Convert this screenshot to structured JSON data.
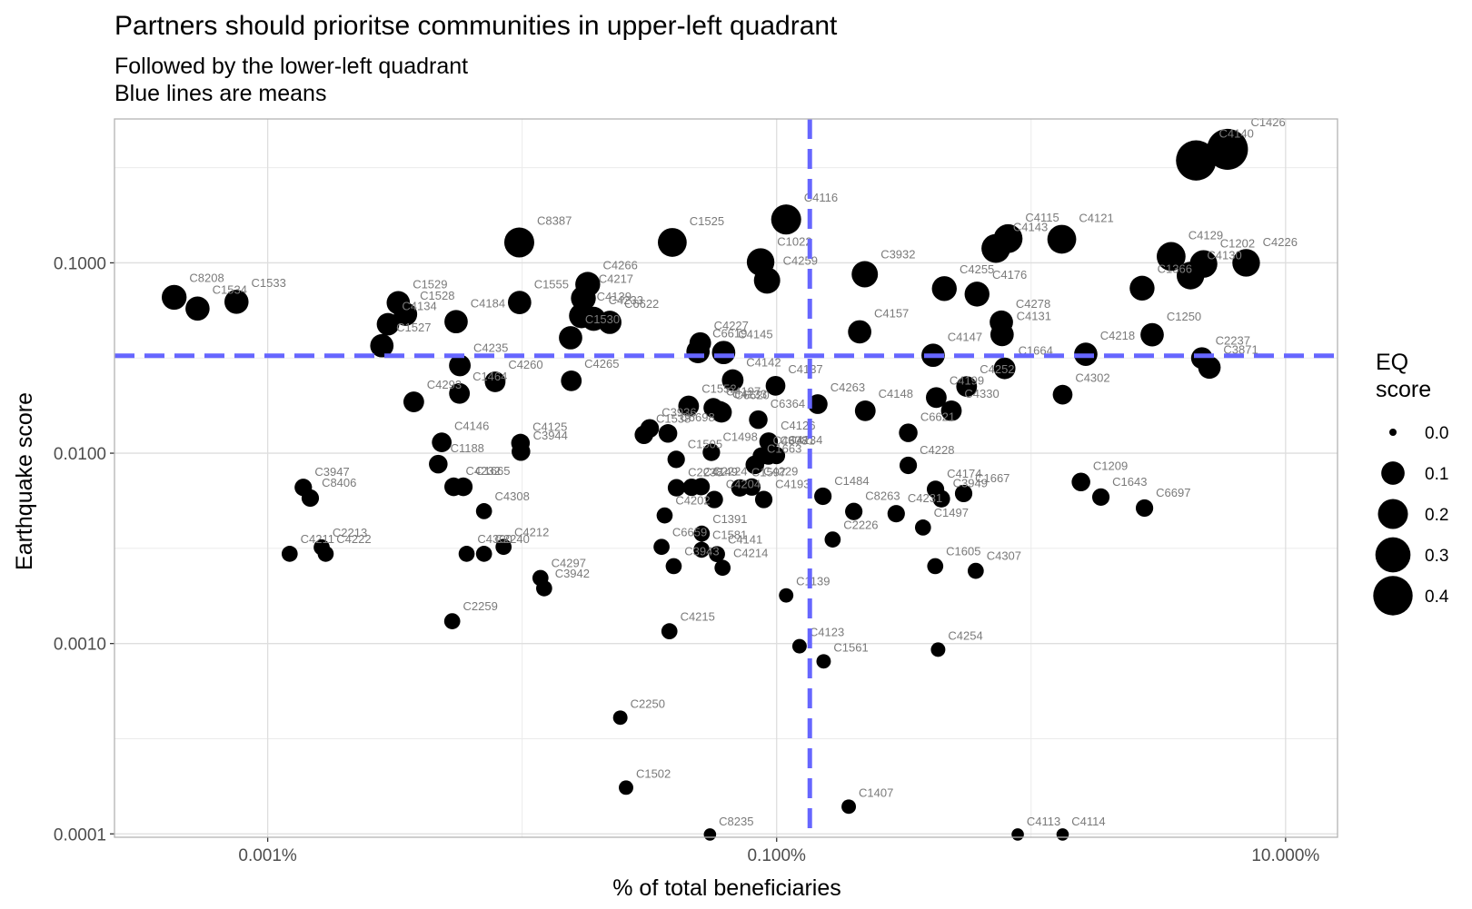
{
  "chart_data": {
    "type": "scatter",
    "title": "Partners should prioritse communities in upper-left quadrant",
    "subtitle_lines": [
      "Followed by the lower-left quadrant",
      "Blue lines are means"
    ],
    "xlabel": "% of total beneficiaries",
    "ylabel": "Earthquake score",
    "x_scale": "log10",
    "y_scale": "log10",
    "xlim": [
      2.5e-06,
      0.16
    ],
    "ylim": [
      9.6e-05,
      0.57
    ],
    "x_ticks": [
      {
        "value": 1e-05,
        "label": "0.001%"
      },
      {
        "value": 0.001,
        "label": "0.100%"
      },
      {
        "value": 0.1,
        "label": "10.000%"
      }
    ],
    "y_ticks": [
      {
        "value": 0.0001,
        "label": "0.0001"
      },
      {
        "value": 0.001,
        "label": "0.0010"
      },
      {
        "value": 0.01,
        "label": "0.0100"
      },
      {
        "value": 0.1,
        "label": "0.1000"
      }
    ],
    "grid": true,
    "mean_lines": {
      "x": 0.00135,
      "y": 0.0325,
      "color": "#6666ff"
    },
    "legend": {
      "title_lines": [
        "EQ",
        "score"
      ],
      "position": "right",
      "values": [
        0.0,
        0.1,
        0.2,
        0.3,
        0.4
      ],
      "labels": [
        "0.0",
        "0.1",
        "0.2",
        "0.3",
        "0.4"
      ]
    },
    "points": [
      {
        "label": "C1426",
        "x": 0.0591,
        "y": 0.395,
        "size": 0.44
      },
      {
        "label": "C4140",
        "x": 0.0445,
        "y": 0.345,
        "size": 0.42
      },
      {
        "label": "C4116",
        "x": 0.00109,
        "y": 0.169,
        "size": 0.2
      },
      {
        "label": "C8387",
        "x": 9.74e-05,
        "y": 0.128,
        "size": 0.2
      },
      {
        "label": "C1525",
        "x": 0.000389,
        "y": 0.128,
        "size": 0.18
      },
      {
        "label": "C4121",
        "x": 0.0132,
        "y": 0.133,
        "size": 0.18
      },
      {
        "label": "C4115",
        "x": 0.00812,
        "y": 0.134,
        "size": 0.18
      },
      {
        "label": "C4143",
        "x": 0.00727,
        "y": 0.119,
        "size": 0.18
      },
      {
        "label": "C4129",
        "x": 0.0355,
        "y": 0.108,
        "size": 0.18
      },
      {
        "label": "C1202",
        "x": 0.0476,
        "y": 0.0986,
        "size": 0.16
      },
      {
        "label": "C4226",
        "x": 0.07,
        "y": 0.1,
        "size": 0.16
      },
      {
        "label": "C4130",
        "x": 0.0423,
        "y": 0.0857,
        "size": 0.16
      },
      {
        "label": "C1022",
        "x": 0.000865,
        "y": 0.101,
        "size": 0.16
      },
      {
        "label": "C4259",
        "x": 0.000917,
        "y": 0.0808,
        "size": 0.14
      },
      {
        "label": "C3932",
        "x": 0.00222,
        "y": 0.0871,
        "size": 0.14
      },
      {
        "label": "C1366",
        "x": 0.0273,
        "y": 0.0736,
        "size": 0.12
      },
      {
        "label": "C4255",
        "x": 0.00456,
        "y": 0.0732,
        "size": 0.12
      },
      {
        "label": "C4176",
        "x": 0.00613,
        "y": 0.0685,
        "size": 0.12
      },
      {
        "label": "C8208",
        "x": 4.29e-06,
        "y": 0.0659,
        "size": 0.12
      },
      {
        "label": "C1534",
        "x": 5.3e-06,
        "y": 0.0575,
        "size": 0.11
      },
      {
        "label": "C1533",
        "x": 7.54e-06,
        "y": 0.0624,
        "size": 0.11
      },
      {
        "label": "C1529",
        "x": 3.26e-05,
        "y": 0.0617,
        "size": 0.1
      },
      {
        "label": "C1528",
        "x": 3.48e-05,
        "y": 0.0537,
        "size": 0.1
      },
      {
        "label": "C1555",
        "x": 9.77e-05,
        "y": 0.0619,
        "size": 0.1
      },
      {
        "label": "C4266",
        "x": 0.000181,
        "y": 0.0771,
        "size": 0.12
      },
      {
        "label": "C4217",
        "x": 0.000174,
        "y": 0.0652,
        "size": 0.12
      },
      {
        "label": "C4139",
        "x": 0.000171,
        "y": 0.0527,
        "size": 0.12
      },
      {
        "label": "C4233",
        "x": 0.000191,
        "y": 0.0508,
        "size": 0.11
      },
      {
        "label": "C6622",
        "x": 0.000221,
        "y": 0.0487,
        "size": 0.1
      },
      {
        "label": "C4184",
        "x": 5.5e-05,
        "y": 0.0491,
        "size": 0.1
      },
      {
        "label": "C4157",
        "x": 0.00212,
        "y": 0.0434,
        "size": 0.1
      },
      {
        "label": "C4278",
        "x": 0.00764,
        "y": 0.0488,
        "size": 0.1
      },
      {
        "label": "C4131",
        "x": 0.00769,
        "y": 0.042,
        "size": 0.1
      },
      {
        "label": "C1250",
        "x": 0.0299,
        "y": 0.0419,
        "size": 0.1
      },
      {
        "label": "C1530",
        "x": 0.000155,
        "y": 0.0404,
        "size": 0.1
      },
      {
        "label": "C4134",
        "x": 2.97e-05,
        "y": 0.0476,
        "size": 0.09
      },
      {
        "label": "C4227",
        "x": 0.000501,
        "y": 0.0379,
        "size": 0.08
      },
      {
        "label": "C6619",
        "x": 0.000491,
        "y": 0.0342,
        "size": 0.1
      },
      {
        "label": "C4145",
        "x": 0.000619,
        "y": 0.0338,
        "size": 0.1
      },
      {
        "label": "C1527",
        "x": 2.81e-05,
        "y": 0.0367,
        "size": 0.1
      },
      {
        "label": "C4218",
        "x": 0.0164,
        "y": 0.0331,
        "size": 0.1
      },
      {
        "label": "C4147",
        "x": 0.00412,
        "y": 0.0327,
        "size": 0.1
      },
      {
        "label": "C2237",
        "x": 0.0469,
        "y": 0.0316,
        "size": 0.08
      },
      {
        "label": "C3871",
        "x": 0.0502,
        "y": 0.0282,
        "size": 0.09
      },
      {
        "label": "C1664",
        "x": 0.00787,
        "y": 0.0279,
        "size": 0.08
      },
      {
        "label": "C4235",
        "x": 5.69e-05,
        "y": 0.0289,
        "size": 0.08
      },
      {
        "label": "C4260",
        "x": 7.83e-05,
        "y": 0.0237,
        "size": 0.07
      },
      {
        "label": "C4265",
        "x": 0.000156,
        "y": 0.024,
        "size": 0.07
      },
      {
        "label": "C4142",
        "x": 0.000672,
        "y": 0.0242,
        "size": 0.08
      },
      {
        "label": "C4137",
        "x": 0.00099,
        "y": 0.0226,
        "size": 0.06
      },
      {
        "label": "C4199",
        "x": 0.00424,
        "y": 0.0196,
        "size": 0.07
      },
      {
        "label": "C4252",
        "x": 0.00558,
        "y": 0.0224,
        "size": 0.07
      },
      {
        "label": "C1464",
        "x": 5.67e-05,
        "y": 0.0206,
        "size": 0.07
      },
      {
        "label": "C4293",
        "x": 3.75e-05,
        "y": 0.0186,
        "size": 0.07
      },
      {
        "label": "C6620",
        "x": 0.000607,
        "y": 0.0164,
        "size": 0.07
      },
      {
        "label": "C4197",
        "x": 0.000564,
        "y": 0.0173,
        "size": 0.06
      },
      {
        "label": "C1552",
        "x": 0.000451,
        "y": 0.0177,
        "size": 0.07
      },
      {
        "label": "C4133",
        "x": 0.000597,
        "y": 0.0167,
        "size": 0.06
      },
      {
        "label": "C4148",
        "x": 0.00223,
        "y": 0.0167,
        "size": 0.07
      },
      {
        "label": "C4263",
        "x": 0.00145,
        "y": 0.0181,
        "size": 0.06
      },
      {
        "label": "C4330",
        "x": 0.00486,
        "y": 0.0167,
        "size": 0.07
      },
      {
        "label": "C6364",
        "x": 0.000847,
        "y": 0.015,
        "size": 0.05
      },
      {
        "label": "C4302",
        "x": 0.0133,
        "y": 0.0203,
        "size": 0.06
      },
      {
        "label": "C3936",
        "x": 0.000317,
        "y": 0.0135,
        "size": 0.05
      },
      {
        "label": "C1538",
        "x": 0.000301,
        "y": 0.0125,
        "size": 0.05
      },
      {
        "label": "C6621",
        "x": 0.00329,
        "y": 0.0128,
        "size": 0.05
      },
      {
        "label": "C6698",
        "x": 0.000374,
        "y": 0.0127,
        "size": 0.05
      },
      {
        "label": "C4146",
        "x": 4.83e-05,
        "y": 0.0114,
        "size": 0.06
      },
      {
        "label": "C4125",
        "x": 9.85e-05,
        "y": 0.0113,
        "size": 0.05
      },
      {
        "label": "C3944",
        "x": 9.89e-05,
        "y": 0.0102,
        "size": 0.05
      },
      {
        "label": "C4126",
        "x": 0.00093,
        "y": 0.0115,
        "size": 0.05
      },
      {
        "label": "C1498",
        "x": 0.000554,
        "y": 0.0101,
        "size": 0.04
      },
      {
        "label": "C4303",
        "x": 0.000871,
        "y": 0.00966,
        "size": 0.04
      },
      {
        "label": "C6781",
        "x": 0.000928,
        "y": 0.00966,
        "size": 0.04
      },
      {
        "label": "C4234",
        "x": 0.000998,
        "y": 0.00972,
        "size": 0.04
      },
      {
        "label": "C4228",
        "x": 0.00329,
        "y": 0.00863,
        "size": 0.04
      },
      {
        "label": "C1188",
        "x": 4.68e-05,
        "y": 0.00876,
        "size": 0.05
      },
      {
        "label": "C1663",
        "x": 0.000821,
        "y": 0.00869,
        "size": 0.05
      },
      {
        "label": "C1505",
        "x": 0.000403,
        "y": 0.00928,
        "size": 0.04
      },
      {
        "label": "C4232",
        "x": 5.38e-05,
        "y": 0.00666,
        "size": 0.05
      },
      {
        "label": "C1665",
        "x": 5.87e-05,
        "y": 0.00666,
        "size": 0.05
      },
      {
        "label": "C2238",
        "x": 0.000404,
        "y": 0.00658,
        "size": 0.04
      },
      {
        "label": "C4149",
        "x": 0.000463,
        "y": 0.00662,
        "size": 0.04
      },
      {
        "label": "C2224",
        "x": 0.000505,
        "y": 0.00667,
        "size": 0.04
      },
      {
        "label": "C1597",
        "x": 0.000717,
        "y": 0.00657,
        "size": 0.04
      },
      {
        "label": "C4229",
        "x": 0.000799,
        "y": 0.00664,
        "size": 0.04
      },
      {
        "label": "C4174",
        "x": 0.00421,
        "y": 0.00646,
        "size": 0.04
      },
      {
        "label": "C1667",
        "x": 0.00543,
        "y": 0.00614,
        "size": 0.04
      },
      {
        "label": "C1209",
        "x": 0.0157,
        "y": 0.00706,
        "size": 0.05
      },
      {
        "label": "C3947",
        "x": 1.38e-05,
        "y": 0.00661,
        "size": 0.04
      },
      {
        "label": "C1643",
        "x": 0.0188,
        "y": 0.00588,
        "size": 0.04
      },
      {
        "label": "C4204",
        "x": 0.000569,
        "y": 0.00571,
        "size": 0.04
      },
      {
        "label": "C4193",
        "x": 0.00089,
        "y": 0.00571,
        "size": 0.04
      },
      {
        "label": "C1484",
        "x": 0.00152,
        "y": 0.00594,
        "size": 0.04
      },
      {
        "label": "C4231",
        "x": 0.00295,
        "y": 0.00481,
        "size": 0.04
      },
      {
        "label": "C8263",
        "x": 0.00201,
        "y": 0.00494,
        "size": 0.04
      },
      {
        "label": "C3949",
        "x": 0.00444,
        "y": 0.00576,
        "size": 0.04
      },
      {
        "label": "C6697",
        "x": 0.0279,
        "y": 0.00515,
        "size": 0.04
      },
      {
        "label": "C8406",
        "x": 1.47e-05,
        "y": 0.00581,
        "size": 0.04
      },
      {
        "label": "C4211",
        "x": 1.22e-05,
        "y": 0.00296,
        "size": 0.03
      },
      {
        "label": "C2213",
        "x": 1.63e-05,
        "y": 0.0032,
        "size": 0.03
      },
      {
        "label": "C4222",
        "x": 1.69e-05,
        "y": 0.00296,
        "size": 0.03
      },
      {
        "label": "C4308",
        "x": 7.08e-05,
        "y": 0.00496,
        "size": 0.03
      },
      {
        "label": "C4300",
        "x": 6.05e-05,
        "y": 0.00296,
        "size": 0.03
      },
      {
        "label": "C4202",
        "x": 0.000363,
        "y": 0.00471,
        "size": 0.03
      },
      {
        "label": "C1497",
        "x": 0.00376,
        "y": 0.00407,
        "size": 0.03
      },
      {
        "label": "C1391",
        "x": 0.000508,
        "y": 0.00378,
        "size": 0.03
      },
      {
        "label": "C2226",
        "x": 0.00166,
        "y": 0.00352,
        "size": 0.03
      },
      {
        "label": "C2240",
        "x": 7.08e-05,
        "y": 0.00296,
        "size": 0.03
      },
      {
        "label": "C4212",
        "x": 8.45e-05,
        "y": 0.00322,
        "size": 0.03
      },
      {
        "label": "C4297",
        "x": 0.000118,
        "y": 0.00221,
        "size": 0.03
      },
      {
        "label": "C6659",
        "x": 0.000353,
        "y": 0.00322,
        "size": 0.03
      },
      {
        "label": "C3943",
        "x": 0.000394,
        "y": 0.00255,
        "size": 0.03
      },
      {
        "label": "C1581",
        "x": 0.000507,
        "y": 0.00311,
        "size": 0.03
      },
      {
        "label": "C4141",
        "x": 0.000583,
        "y": 0.00295,
        "size": 0.03
      },
      {
        "label": "C4214",
        "x": 0.000613,
        "y": 0.0025,
        "size": 0.03
      },
      {
        "label": "C1605",
        "x": 0.0042,
        "y": 0.00255,
        "size": 0.03
      },
      {
        "label": "C4307",
        "x": 0.00606,
        "y": 0.00241,
        "size": 0.03
      },
      {
        "label": "C3942",
        "x": 0.000122,
        "y": 0.00195,
        "size": 0.03
      },
      {
        "label": "C1139",
        "x": 0.00109,
        "y": 0.00179,
        "size": 0.02
      },
      {
        "label": "C2259",
        "x": 5.31e-05,
        "y": 0.00131,
        "size": 0.03
      },
      {
        "label": "C4215",
        "x": 0.000379,
        "y": 0.00116,
        "size": 0.03
      },
      {
        "label": "C4123",
        "x": 0.00123,
        "y": 0.000968,
        "size": 0.02
      },
      {
        "label": "C4254",
        "x": 0.00431,
        "y": 0.000929,
        "size": 0.02
      },
      {
        "label": "C1561",
        "x": 0.00153,
        "y": 0.000806,
        "size": 0.02
      },
      {
        "label": "C2250",
        "x": 0.000243,
        "y": 0.000408,
        "size": 0.02
      },
      {
        "label": "C1502",
        "x": 0.000256,
        "y": 0.000175,
        "size": 0.02
      },
      {
        "label": "C1407",
        "x": 0.00192,
        "y": 0.000139,
        "size": 0.02
      },
      {
        "label": "C8235",
        "x": 0.000547,
        "y": 9.93e-05,
        "size": 0.01
      },
      {
        "label": "C4113",
        "x": 0.00886,
        "y": 9.93e-05,
        "size": 0.01
      },
      {
        "label": "C4114",
        "x": 0.0133,
        "y": 9.93e-05,
        "size": 0.01
      }
    ]
  }
}
